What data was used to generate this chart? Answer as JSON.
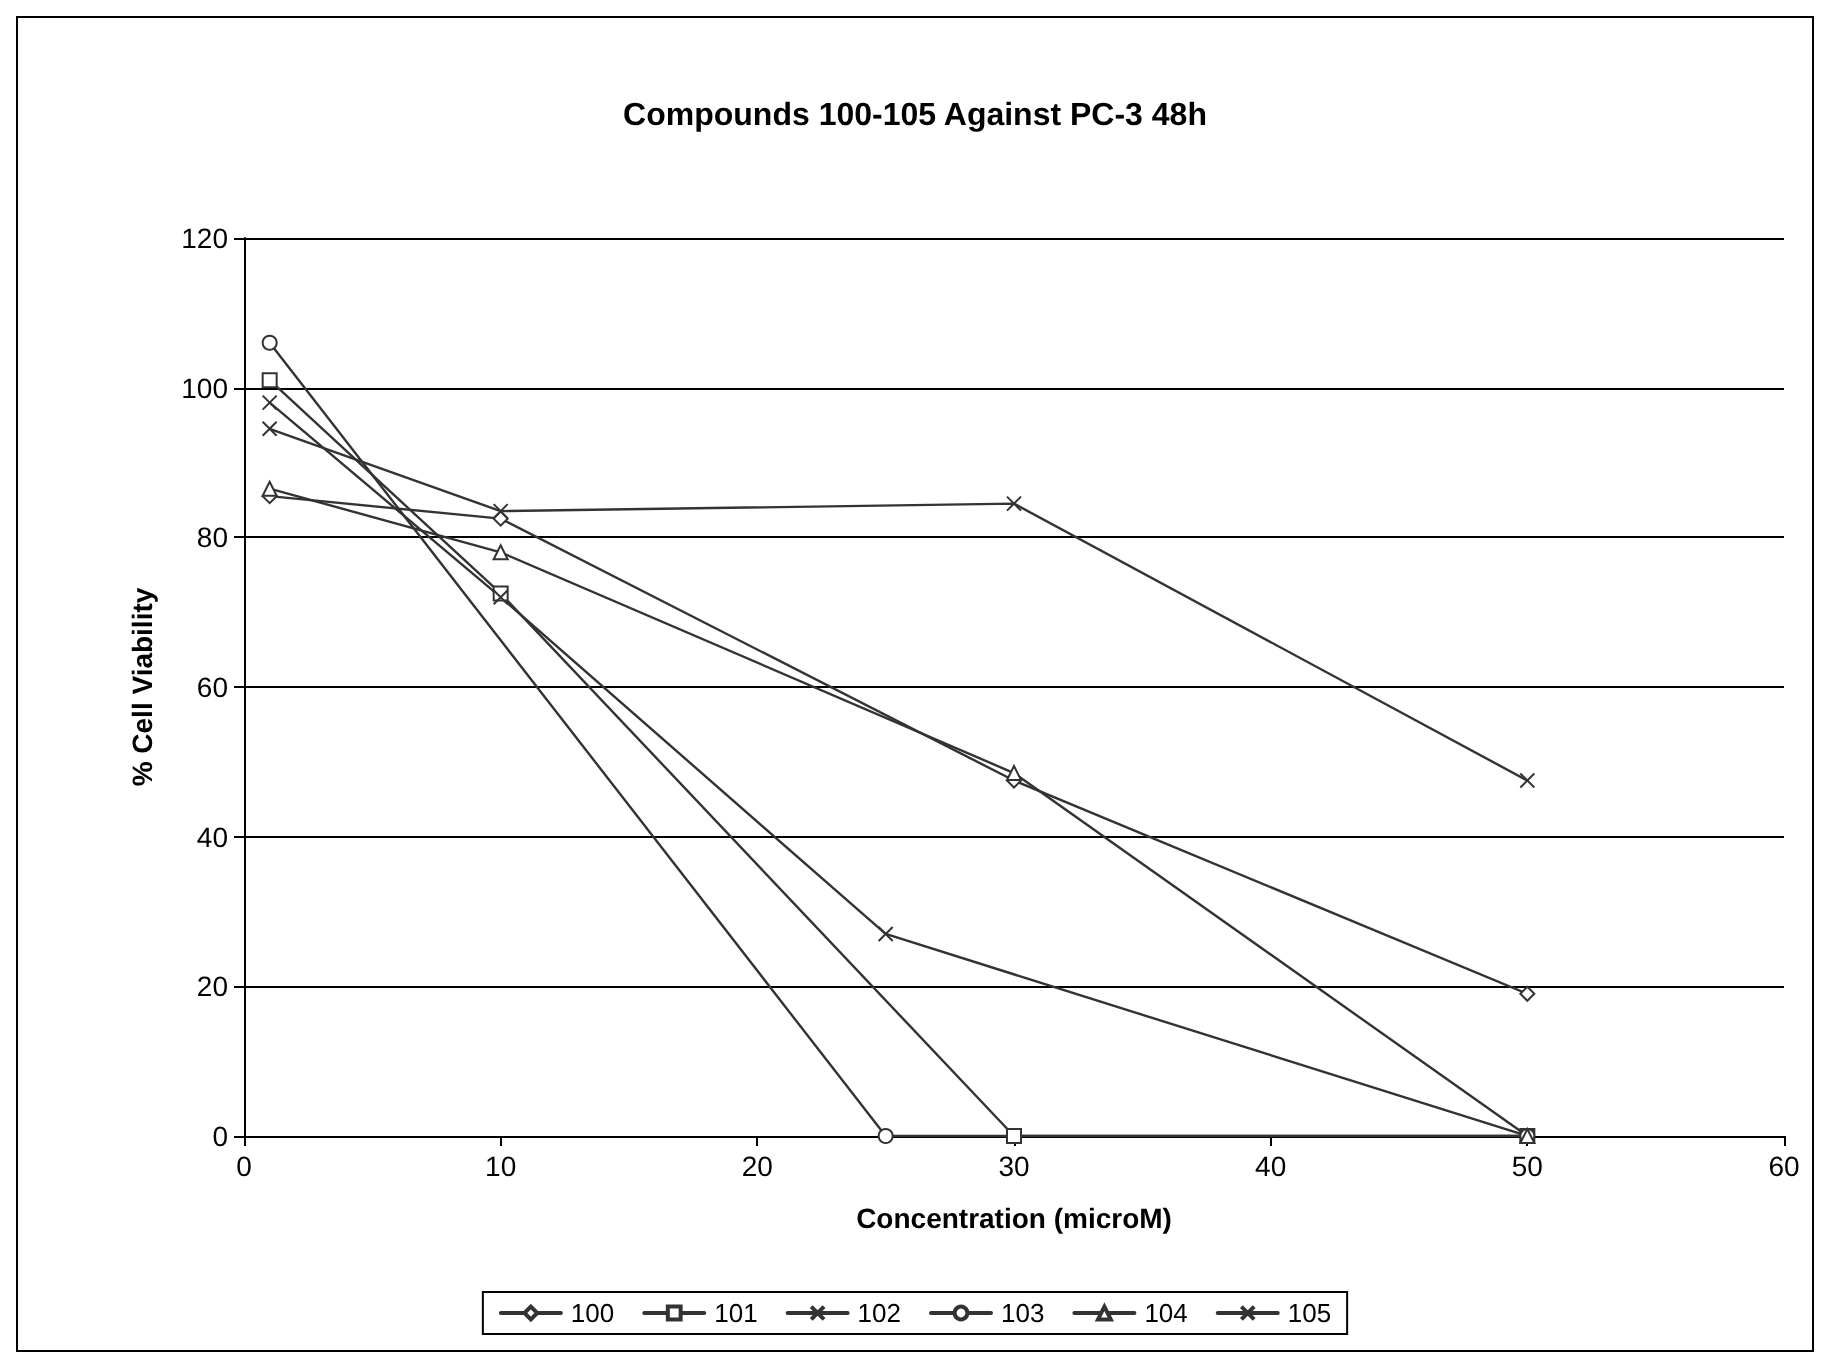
{
  "chart_data": {
    "type": "line",
    "title": "Compounds 100-105 Against PC-3 48h",
    "xlabel": "Concentration (microM)",
    "ylabel": "% Cell Viability",
    "xlim": [
      0,
      60
    ],
    "xticks": [
      0,
      10,
      20,
      30,
      40,
      50,
      60
    ],
    "ylim": [
      0,
      120
    ],
    "yticks": [
      0,
      20,
      40,
      60,
      80,
      100,
      120
    ],
    "grid": "y",
    "legend": "bottom",
    "line_style": "solid",
    "series": [
      {
        "name": "100",
        "color": "#333333",
        "marker": "diamond",
        "x": [
          1,
          10,
          30,
          50
        ],
        "values": [
          85.5,
          82.5,
          47.5,
          19
        ]
      },
      {
        "name": "101",
        "color": "#333333",
        "marker": "square",
        "x": [
          1,
          10,
          30,
          50
        ],
        "values": [
          101,
          72.5,
          0,
          0
        ]
      },
      {
        "name": "102",
        "color": "#333333",
        "marker": "cross",
        "x": [
          1,
          10,
          25,
          50
        ],
        "values": [
          98,
          72,
          27,
          0
        ]
      },
      {
        "name": "103",
        "color": "#333333",
        "marker": "circle",
        "x": [
          1,
          25,
          50
        ],
        "values": [
          106,
          0,
          0
        ]
      },
      {
        "name": "104",
        "color": "#333333",
        "marker": "triangle",
        "x": [
          1,
          10,
          30,
          50
        ],
        "values": [
          86.5,
          78,
          48.5,
          0
        ]
      },
      {
        "name": "105",
        "color": "#333333",
        "marker": "cross",
        "x": [
          1,
          10,
          30,
          50
        ],
        "values": [
          94.5,
          83.5,
          84.5,
          47.5
        ]
      }
    ]
  }
}
